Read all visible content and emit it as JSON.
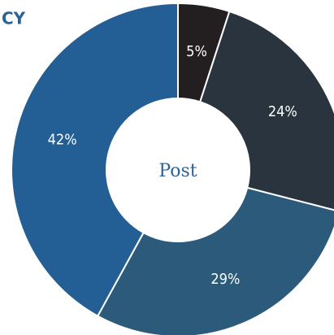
{
  "chart_data": {
    "type": "donut",
    "title": "CY",
    "center_label": "Post",
    "values": [
      5,
      24,
      29,
      42
    ],
    "value_labels": [
      "5%",
      "24%",
      "29%",
      "42%"
    ],
    "colors": [
      "#231f20",
      "#29343f",
      "#2c5a7b",
      "#235f94"
    ]
  }
}
